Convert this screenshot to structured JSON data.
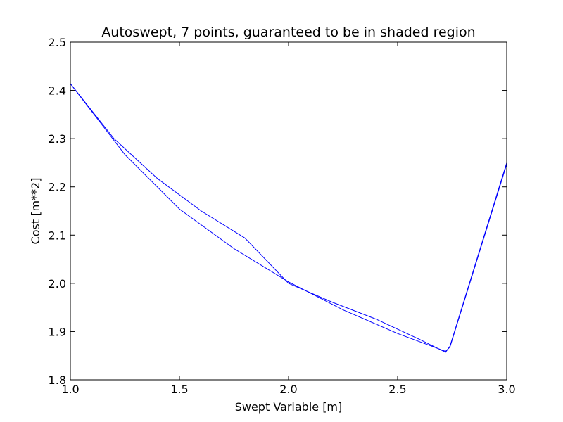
{
  "chart_data": {
    "type": "line",
    "title": "Autoswept, 7 points, guaranteed to be in shaded region",
    "xlabel": "Swept Variable  [m]",
    "ylabel": "Cost  [m**2]",
    "xlim": [
      1.0,
      3.0
    ],
    "ylim": [
      1.8,
      2.5
    ],
    "xticks": [
      1.0,
      1.5,
      2.0,
      2.5,
      3.0
    ],
    "xtick_labels": [
      "1.0",
      "1.5",
      "2.0",
      "2.5",
      "3.0"
    ],
    "yticks": [
      1.8,
      1.9,
      2.0,
      2.1,
      2.2,
      2.3,
      2.4,
      2.5
    ],
    "ytick_labels": [
      "1.8",
      "1.9",
      "2.0",
      "2.1",
      "2.2",
      "2.3",
      "2.4",
      "2.5"
    ],
    "grid": false,
    "series": [
      {
        "color": "#0000ff",
        "x": [
          1.0,
          1.2,
          1.4,
          1.6,
          1.8,
          2.0,
          2.2,
          2.4,
          2.6,
          2.72,
          2.74,
          3.0
        ],
        "y": [
          2.414,
          2.3,
          2.217,
          2.15,
          2.094,
          2.0,
          1.961,
          1.926,
          1.884,
          1.857,
          1.87,
          2.25
        ]
      },
      {
        "color": "#0000ff",
        "x": [
          1.0,
          1.25,
          1.5,
          1.75,
          2.0,
          2.25,
          2.5,
          2.72,
          2.74,
          3.0
        ],
        "y": [
          2.414,
          2.267,
          2.154,
          2.072,
          2.003,
          1.945,
          1.896,
          1.859,
          1.868,
          2.247
        ]
      }
    ]
  }
}
